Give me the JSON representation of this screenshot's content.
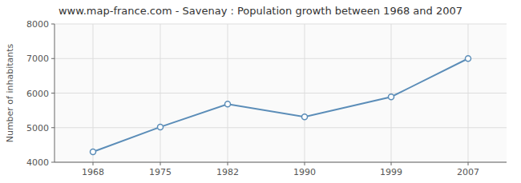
{
  "chart_data": {
    "type": "line",
    "title": "www.map-france.com - Savenay : Population growth between 1968 and 2007",
    "ylabel": "Number of inhabitants",
    "x": [
      1968,
      1975,
      1982,
      1990,
      1999,
      2007
    ],
    "values": [
      4300,
      5020,
      5680,
      5310,
      5890,
      7000
    ],
    "xlim": [
      1964,
      2011
    ],
    "ylim": [
      4000,
      8000
    ],
    "xticks": [
      1968,
      1975,
      1982,
      1990,
      1999,
      2007
    ],
    "yticks": [
      4000,
      5000,
      6000,
      7000,
      8000
    ],
    "grid": true,
    "color": "#5b8db8",
    "marker": "circle"
  }
}
